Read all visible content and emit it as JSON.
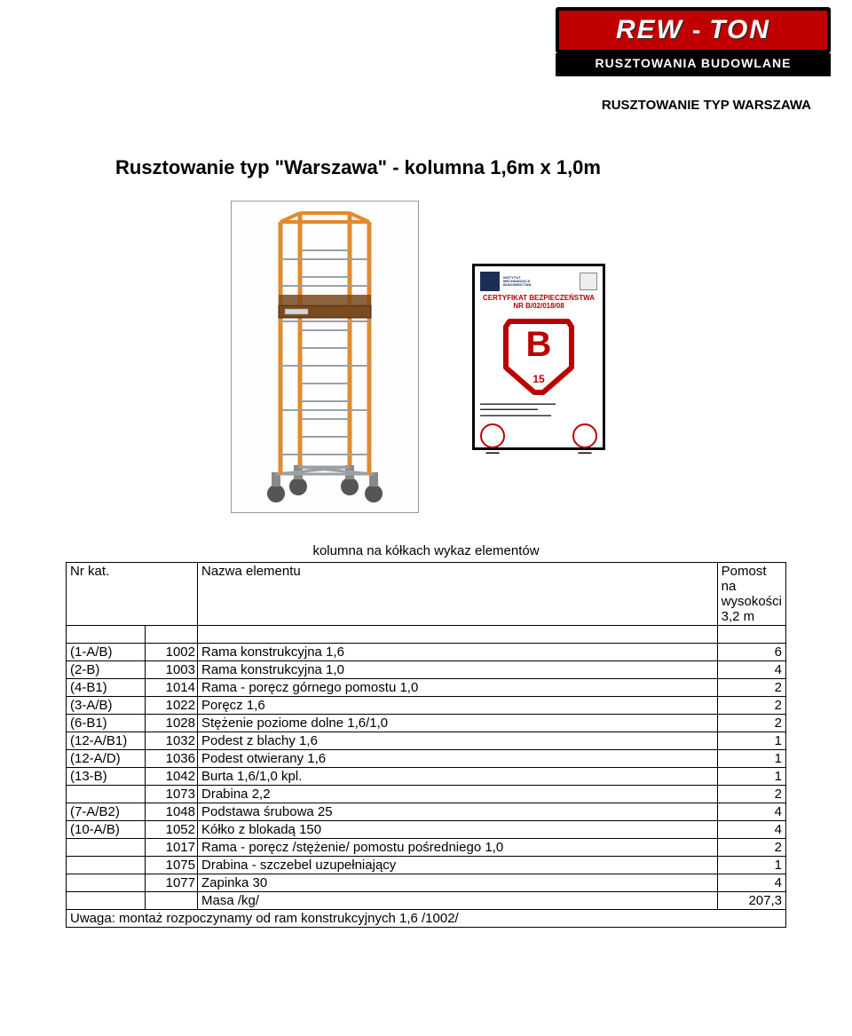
{
  "logo": {
    "brand_left": "REW",
    "brand_dash": "-",
    "brand_right": "TON",
    "subtitle": "RUSZTOWANIA BUDOWLANE",
    "brand_bg": "#c00000",
    "brand_fg": "#ffffff"
  },
  "header_subtitle": "RUSZTOWANIE TYP WARSZAWA",
  "title": "Rusztowanie typ \"Warszawa\" - kolumna 1,6m x 1,0m",
  "certificate": {
    "header_text": "CERTYFIKAT BEZPIECZEŃSTWA",
    "number_line": "NR B/02/018/08",
    "big_letter": "B",
    "year": "15"
  },
  "table": {
    "list_title": "kolumna na kółkach wykaz elementów",
    "col_nr": "Nr kat.",
    "col_name": "Nazwa elementu",
    "col_qty_header": "Pomost na wysokości 3,2 m",
    "rows": [
      {
        "a": "(1-A/B)",
        "b": "1002",
        "c": "Rama konstrukcyjna 1,6",
        "d": "6"
      },
      {
        "a": "(2-B)",
        "b": "1003",
        "c": "Rama konstrukcyjna 1,0",
        "d": "4"
      },
      {
        "a": "(4-B1)",
        "b": "1014",
        "c": "Rama - poręcz górnego pomostu 1,0",
        "d": "2"
      },
      {
        "a": "(3-A/B)",
        "b": "1022",
        "c": "Poręcz 1,6",
        "d": "2"
      },
      {
        "a": "(6-B1)",
        "b": "1028",
        "c": "Stężenie poziome dolne 1,6/1,0",
        "d": "2"
      },
      {
        "a": "(12-A/B1)",
        "b": "1032",
        "c": "Podest z blachy 1,6",
        "d": "1"
      },
      {
        "a": "(12-A/D)",
        "b": "1036",
        "c": "Podest otwierany 1,6",
        "d": "1"
      },
      {
        "a": "(13-B)",
        "b": "1042",
        "c": "Burta 1,6/1,0 kpl.",
        "d": "1"
      },
      {
        "a": "",
        "b": "1073",
        "c": "Drabina 2,2",
        "d": "2"
      },
      {
        "a": "(7-A/B2)",
        "b": "1048",
        "c": "Podstawa śrubowa 25",
        "d": "4"
      },
      {
        "a": "(10-A/B)",
        "b": "1052",
        "c": "Kółko z blokadą 150",
        "d": "4"
      },
      {
        "a": "",
        "b": "1017",
        "c": "Rama - poręcz /stężenie/ pomostu pośredniego 1,0",
        "d": "2"
      },
      {
        "a": "",
        "b": "1075",
        "c": "Drabina - szczebel uzupełniający",
        "d": "1"
      },
      {
        "a": "",
        "b": "1077",
        "c": "Zapinka 30",
        "d": "4"
      }
    ],
    "mass_label": "Masa /kg/",
    "mass_value": "207,3",
    "note": "Uwaga: montaż rozpoczynamy od ram konstrukcyjnych 1,6  /1002/"
  },
  "scaffold": {
    "frame_color": "#e28a2b",
    "platform_color": "#7a4a20",
    "metal_color": "#9ca0a4",
    "wheel_color": "#555"
  }
}
